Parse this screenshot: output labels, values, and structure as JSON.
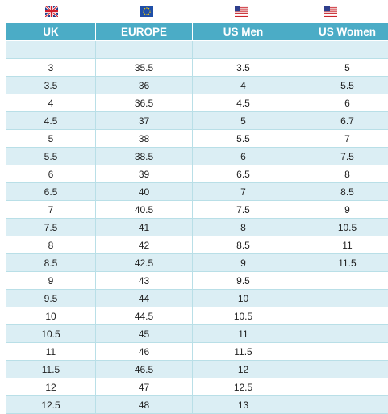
{
  "flags": {
    "uk": "uk-flag-icon",
    "europe": "eu-flag-icon",
    "us_men": "us-flag-icon",
    "us_women": "us-flag-icon"
  },
  "colors": {
    "header_bg": "#4bacc6",
    "band_bg": "#dbeef4",
    "border": "#b9dfe7"
  },
  "headers": [
    "UK",
    "EUROPE",
    "US Men",
    "US Women"
  ],
  "rows": [
    [
      "3",
      "35.5",
      "3.5",
      "5"
    ],
    [
      "3.5",
      "36",
      "4",
      "5.5"
    ],
    [
      "4",
      "36.5",
      "4.5",
      "6"
    ],
    [
      "4.5",
      "37",
      "5",
      "6.7"
    ],
    [
      "5",
      "38",
      "5.5",
      "7"
    ],
    [
      "5.5",
      "38.5",
      "6",
      "7.5"
    ],
    [
      "6",
      "39",
      "6.5",
      "8"
    ],
    [
      "6.5",
      "40",
      "7",
      "8.5"
    ],
    [
      "7",
      "40.5",
      "7.5",
      "9"
    ],
    [
      "7.5",
      "41",
      "8",
      "10.5"
    ],
    [
      "8",
      "42",
      "8.5",
      "11"
    ],
    [
      "8.5",
      "42.5",
      "9",
      "11.5"
    ],
    [
      "9",
      "43",
      "9.5",
      ""
    ],
    [
      "9.5",
      "44",
      "10",
      ""
    ],
    [
      "10",
      "44.5",
      "10.5",
      ""
    ],
    [
      "10.5",
      "45",
      "11",
      ""
    ],
    [
      "11",
      "46",
      "11.5",
      ""
    ],
    [
      "11.5",
      "46.5",
      "12",
      ""
    ],
    [
      "12",
      "47",
      "12.5",
      ""
    ],
    [
      "12.5",
      "48",
      "13",
      ""
    ]
  ]
}
